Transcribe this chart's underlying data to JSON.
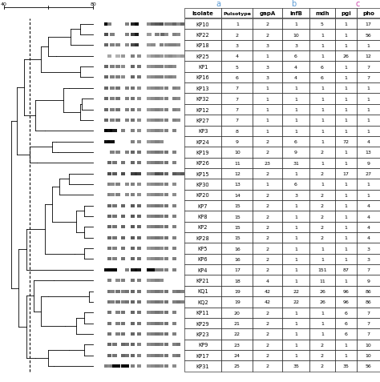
{
  "isolates": [
    "KP10",
    "KP22",
    "KP18",
    "KP25",
    "KP1",
    "KP16",
    "KP13",
    "KP32",
    "KP12",
    "KP27",
    "KP3",
    "KP24",
    "KP19",
    "KP26",
    "KP15",
    "KP30",
    "KP20",
    "KP7",
    "KP8",
    "KP2",
    "KP28",
    "KP5",
    "KP6",
    "KP4",
    "KP21",
    "KQ1",
    "KQ2",
    "KP11",
    "KP29",
    "KP23",
    "KP9",
    "KP17",
    "KP31"
  ],
  "pulsotype": [
    1,
    2,
    3,
    4,
    5,
    6,
    7,
    7,
    7,
    7,
    8,
    9,
    10,
    11,
    12,
    13,
    14,
    15,
    15,
    15,
    15,
    16,
    16,
    17,
    18,
    19,
    19,
    20,
    21,
    22,
    23,
    24,
    25
  ],
  "gapA": [
    2,
    2,
    3,
    1,
    3,
    3,
    1,
    1,
    1,
    1,
    1,
    2,
    2,
    23,
    2,
    1,
    2,
    2,
    2,
    2,
    2,
    2,
    2,
    2,
    4,
    42,
    42,
    2,
    2,
    2,
    2,
    2,
    2
  ],
  "infB": [
    1,
    10,
    3,
    6,
    4,
    4,
    1,
    1,
    1,
    1,
    1,
    6,
    9,
    31,
    1,
    6,
    3,
    1,
    1,
    1,
    1,
    1,
    1,
    1,
    1,
    22,
    22,
    1,
    1,
    1,
    1,
    1,
    35
  ],
  "mdh": [
    5,
    1,
    1,
    1,
    6,
    6,
    1,
    1,
    1,
    1,
    1,
    1,
    2,
    1,
    2,
    1,
    2,
    2,
    2,
    2,
    2,
    1,
    1,
    151,
    11,
    26,
    26,
    1,
    1,
    1,
    2,
    2,
    2
  ],
  "pgi": [
    1,
    1,
    1,
    26,
    1,
    1,
    1,
    1,
    1,
    1,
    1,
    72,
    1,
    1,
    17,
    1,
    1,
    1,
    1,
    1,
    1,
    1,
    1,
    87,
    1,
    96,
    96,
    6,
    6,
    6,
    1,
    1,
    35
  ],
  "pho": [
    17,
    56,
    1,
    12,
    7,
    7,
    1,
    1,
    1,
    1,
    1,
    4,
    13,
    9,
    27,
    1,
    1,
    4,
    4,
    4,
    4,
    3,
    3,
    7,
    9,
    86,
    86,
    7,
    7,
    7,
    10,
    10,
    56
  ],
  "header_color_a": "#5B9BD5",
  "header_color_b": "#5B9BD5",
  "header_color_c": "#CC44AA"
}
